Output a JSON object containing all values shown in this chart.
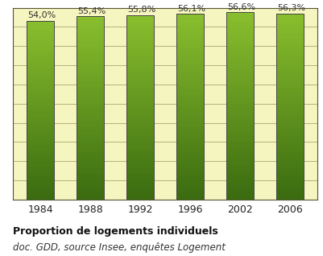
{
  "categories": [
    "1984",
    "1988",
    "1992",
    "1996",
    "2002",
    "2006"
  ],
  "values": [
    54.0,
    55.4,
    55.8,
    56.1,
    56.6,
    56.3
  ],
  "labels": [
    "54,0%",
    "55,4%",
    "55,8%",
    "56,1%",
    "56,6%",
    "56,3%"
  ],
  "bar_color_top": "#8abf2e",
  "bar_color_bottom": "#3a6b10",
  "plot_bg_color": "#f5f5c0",
  "outer_bg_color": "#ffffff",
  "border_color": "#555555",
  "grid_color": "#bbbb88",
  "title": "Proportion de logements individuels",
  "subtitle": "doc. GDD, source Insee, enquêtes Logement",
  "title_fontsize": 9,
  "subtitle_fontsize": 8.5,
  "label_fontsize": 8,
  "tick_fontsize": 9,
  "ylim_min": 0,
  "ylim_max": 58,
  "bar_width": 0.55,
  "n_gridlines": 10
}
